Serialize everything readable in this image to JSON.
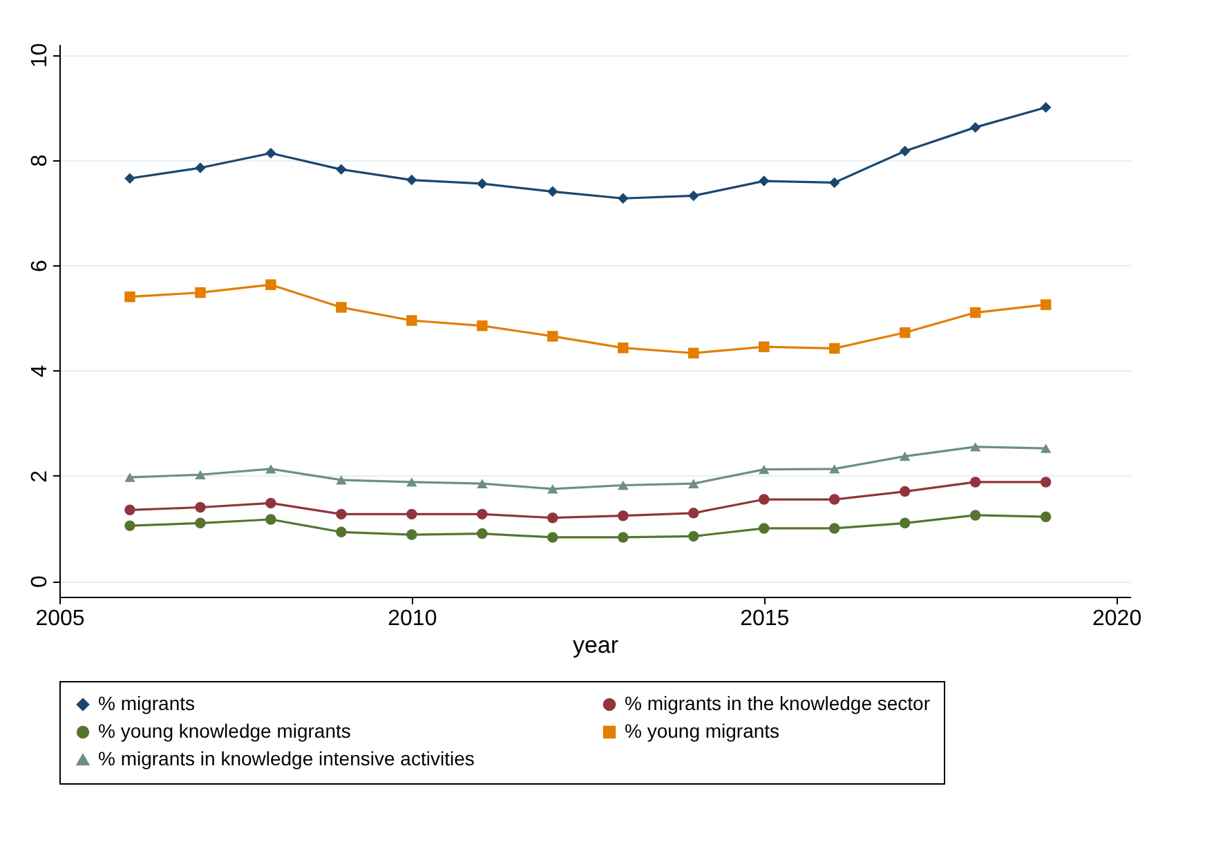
{
  "chart_data": {
    "type": "line",
    "xlabel": "year",
    "x": [
      2006,
      2007,
      2008,
      2009,
      2010,
      2011,
      2012,
      2013,
      2014,
      2015,
      2016,
      2017,
      2018,
      2019
    ],
    "xlim": [
      2005,
      2020.2
    ],
    "xticks": [
      2005,
      2010,
      2015,
      2020
    ],
    "ylim": [
      -0.3,
      10.2
    ],
    "yticks": [
      0,
      2,
      4,
      6,
      8,
      10
    ],
    "grid": "y",
    "legend": "bottom",
    "series": [
      {
        "name": "% migrants",
        "color": "#1a476f",
        "marker": "diamond",
        "values": [
          7.65,
          7.85,
          8.13,
          7.82,
          7.62,
          7.55,
          7.4,
          7.27,
          7.32,
          7.6,
          7.57,
          8.17,
          8.62,
          9.0
        ]
      },
      {
        "name": "% migrants in the knowledge sector",
        "color": "#90353b",
        "marker": "circle",
        "values": [
          1.35,
          1.4,
          1.48,
          1.27,
          1.27,
          1.27,
          1.2,
          1.24,
          1.29,
          1.55,
          1.55,
          1.7,
          1.88,
          1.88
        ]
      },
      {
        "name": "% young knowledge migrants",
        "color": "#55752f",
        "marker": "circle",
        "values": [
          1.05,
          1.1,
          1.17,
          0.93,
          0.88,
          0.9,
          0.83,
          0.83,
          0.85,
          1.0,
          1.0,
          1.1,
          1.25,
          1.22
        ]
      },
      {
        "name": "% young migrants",
        "color": "#e37e00",
        "marker": "square",
        "values": [
          5.4,
          5.48,
          5.63,
          5.2,
          4.95,
          4.85,
          4.65,
          4.43,
          4.33,
          4.45,
          4.42,
          4.72,
          5.1,
          5.25
        ]
      },
      {
        "name": "% migrants in knowledge intensive activities",
        "color": "#6e8e84",
        "marker": "triangle",
        "values": [
          1.97,
          2.02,
          2.13,
          1.92,
          1.88,
          1.85,
          1.75,
          1.82,
          1.85,
          2.12,
          2.13,
          2.37,
          2.55,
          2.52
        ]
      }
    ]
  }
}
